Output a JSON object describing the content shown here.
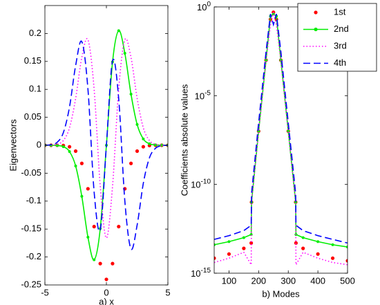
{
  "chart_data": [
    {
      "type": "line",
      "xlabel": "a) x",
      "ylabel": "Eigenvectors",
      "x": [
        -5,
        -4.5,
        -4,
        -3.5,
        -3,
        -2.5,
        -2,
        -1.5,
        -1,
        -0.5,
        0,
        0.5,
        1,
        1.5,
        2,
        2.5,
        3,
        3.5,
        4,
        4.5,
        5
      ],
      "xlim": [
        -5,
        5
      ],
      "xticks": [
        -5,
        0,
        5
      ],
      "ylim": [
        -0.25,
        0.25
      ],
      "yticks": [
        -0.25,
        -0.2,
        -0.15,
        -0.1,
        -0.05,
        0,
        0.05,
        0.1,
        0.15,
        0.2
      ],
      "series": [
        {
          "name": "1st",
          "color": "#ff0000",
          "line": "none",
          "marker": "dot",
          "values": [
            0,
            0,
            -0.0001,
            -0.0005,
            -0.0027,
            -0.0105,
            -0.0325,
            -0.0779,
            -0.1456,
            -0.2118,
            -0.24,
            -0.2118,
            -0.1456,
            -0.0779,
            -0.0325,
            -0.0105,
            -0.0027,
            -0.0005,
            -0.0001,
            0,
            0
          ]
        },
        {
          "name": "2nd",
          "color": "#00ee00",
          "line": "solid",
          "marker": "dot",
          "values": [
            0,
            -0.0001,
            -0.0005,
            -0.0026,
            -0.0113,
            -0.0371,
            -0.0915,
            -0.1646,
            -0.205,
            -0.1491,
            0,
            0.1491,
            0.205,
            0.1646,
            0.0915,
            0.0371,
            0.0113,
            0.0026,
            0.0005,
            0.0001,
            0
          ]
        },
        {
          "name": "3rd",
          "color": "#ff00ff",
          "line": "dotted",
          "marker": null,
          "values": [
            0,
            0.0003,
            0.0017,
            0.0085,
            0.0313,
            0.0838,
            0.1572,
            0.1887,
            0.1007,
            -0.0732,
            -0.166,
            -0.0732,
            0.1007,
            0.1887,
            0.1572,
            0.0838,
            0.0313,
            0.0085,
            0.0017,
            0.0003,
            0
          ]
        },
        {
          "name": "4th",
          "color": "#0000ff",
          "line": "dashed",
          "marker": null,
          "values": [
            0.0001,
            0.0009,
            0.0053,
            0.0226,
            0.0684,
            0.1428,
            0.1854,
            0.1001,
            -0.0831,
            -0.1511,
            0,
            0.1511,
            0.0831,
            -0.1001,
            -0.1854,
            -0.1428,
            -0.0684,
            -0.0226,
            -0.0053,
            -0.0009,
            -0.0001
          ]
        }
      ]
    },
    {
      "type": "line",
      "xlabel": "b) Modes",
      "ylabel": "Coefficients absolute values",
      "ylog": true,
      "legend": "upper right",
      "x": [
        50,
        100,
        150,
        175,
        176,
        200,
        225,
        240,
        250,
        260,
        275,
        300,
        325,
        326,
        350,
        400,
        450,
        500
      ],
      "xlim": [
        50,
        500
      ],
      "xticks": [
        100,
        200,
        300,
        400,
        500
      ],
      "ylim": [
        1e-15,
        1
      ],
      "yticks": [
        {
          "value": 1,
          "label": "10^0"
        },
        {
          "value": 1e-05,
          "label": "10^-5"
        },
        {
          "value": 1e-10,
          "label": "10^-10"
        },
        {
          "value": 1e-15,
          "label": "10^-15"
        }
      ],
      "series": [
        {
          "name": "1st",
          "color": "#ff0000",
          "line": "none",
          "marker": "dot",
          "values": [
            7e-15,
            1.2e-14,
            2.5e-14,
            5e-14,
            1e-11,
            1e-07,
            0.001,
            0.2,
            0.5,
            0.2,
            0.001,
            1e-07,
            1e-11,
            5e-14,
            2.5e-14,
            1.2e-14,
            7e-15,
            5e-15
          ]
        },
        {
          "name": "2nd",
          "color": "#00ee00",
          "line": "solid",
          "marker": "dot",
          "values": [
            4e-14,
            6e-14,
            1e-13,
            1.5e-13,
            1e-11,
            1e-07,
            0.001,
            0.3,
            0.4,
            0.3,
            0.001,
            1e-07,
            1e-11,
            1.5e-13,
            1e-13,
            6e-14,
            4e-14,
            3e-14
          ]
        },
        {
          "name": "3rd",
          "color": "#ff00ff",
          "line": "dotted",
          "marker": null,
          "values": [
            4e-15,
            7e-15,
            1.5e-14,
            3e-15,
            1e-11,
            1e-07,
            0.001,
            0.1,
            0.5,
            0.1,
            0.001,
            1e-07,
            1e-11,
            3e-15,
            1.5e-14,
            7e-15,
            4e-15,
            3e-15
          ]
        },
        {
          "name": "4th",
          "color": "#0000ff",
          "line": "dashed",
          "marker": null,
          "values": [
            8e-14,
            1.3e-13,
            2.5e-13,
            5e-13,
            3e-11,
            3e-07,
            0.003,
            0.4,
            0.1,
            0.4,
            0.003,
            3e-07,
            3e-11,
            5e-13,
            2.5e-13,
            1.3e-13,
            8e-14,
            5e-14
          ]
        }
      ]
    }
  ]
}
